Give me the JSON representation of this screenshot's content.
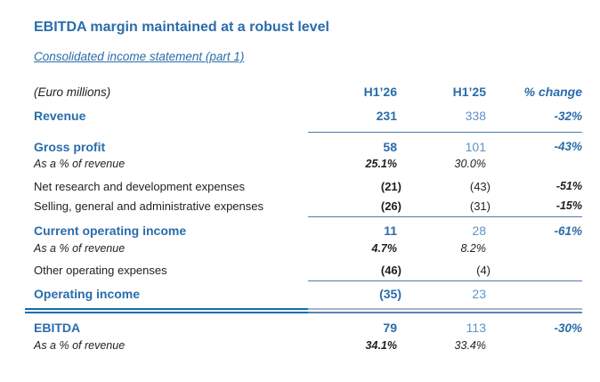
{
  "title": "EBITDA margin maintained at a robust level",
  "subtitle": "Consolidated income statement (part 1)",
  "colors": {
    "blue": "#2a6cab",
    "lightblue": "#5e93c8",
    "ink": "#1f1f1f",
    "rule": "#4a7cb0",
    "dblStrong": "#0f6fae",
    "dblLightTop": "#a9b4cb",
    "dblLightBot": "#5e82b4",
    "bg": "#ffffff"
  },
  "table": {
    "header": {
      "label": "(Euro millions)",
      "h126": "H1’26",
      "h125": "H1’25",
      "change": "% change"
    },
    "rows": [
      {
        "label": "Revenue",
        "h126": "231",
        "h125": "338",
        "change": "-32%"
      },
      {
        "label": "Gross profit",
        "h126": "58",
        "h125": "101",
        "change": "-43%"
      },
      {
        "label": "As a % of revenue",
        "h126": "25.1%",
        "h125": "30.0%",
        "change": ""
      },
      {
        "label": "Net research and development expenses",
        "h126": "(21)",
        "h125": "(43)",
        "change": "-51%"
      },
      {
        "label": "Selling, general and administrative expenses",
        "h126": "(26)",
        "h125": "(31)",
        "change": "-15%"
      },
      {
        "label": "Current operating income",
        "h126": "11",
        "h125": "28",
        "change": "-61%"
      },
      {
        "label": "As a % of revenue",
        "h126": "4.7%",
        "h125": "8.2%",
        "change": ""
      },
      {
        "label": "Other operating expenses",
        "h126": "(46)",
        "h125": "(4)",
        "change": ""
      },
      {
        "label": "Operating income",
        "h126": "(35)",
        "h125": "23",
        "change": ""
      },
      {
        "label": "EBITDA",
        "h126": "79",
        "h125": "113",
        "change": "-30%"
      },
      {
        "label": "As a % of revenue",
        "h126": "34.1%",
        "h125": "33.4%",
        "change": ""
      }
    ]
  }
}
